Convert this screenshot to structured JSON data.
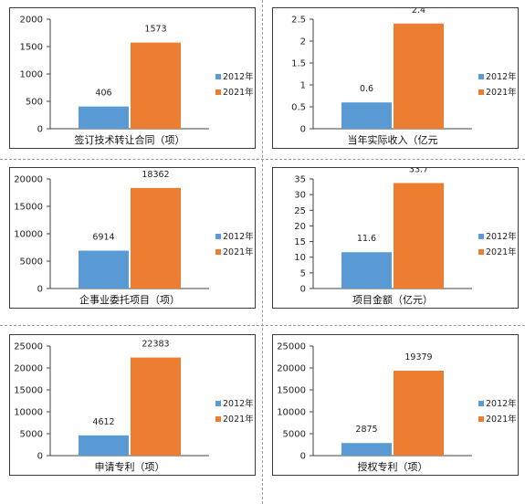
{
  "colors": {
    "series_2012": "#5b9bd5",
    "series_2021": "#ed7d31",
    "axis": "#404040"
  },
  "legend": [
    "2012年",
    "2021年"
  ],
  "chart_data": [
    {
      "type": "bar",
      "categories": [
        "签订技术转让合同（项）"
      ],
      "series": [
        {
          "name": "2012年",
          "values": [
            406
          ]
        },
        {
          "name": "2021年",
          "values": [
            1573
          ]
        }
      ],
      "data_labels": [
        "406",
        "1573"
      ],
      "yticks": [
        "0",
        "500",
        "1000",
        "1500",
        "2000"
      ],
      "ylim": [
        0,
        2000
      ],
      "xlabel": "签订技术转让合同（项）",
      "legend_position": "right"
    },
    {
      "type": "bar",
      "categories": [
        "当年实际收入（亿元"
      ],
      "series": [
        {
          "name": "2012年",
          "values": [
            0.6
          ]
        },
        {
          "name": "2021年",
          "values": [
            2.4
          ]
        }
      ],
      "data_labels": [
        "0.6",
        "2.4"
      ],
      "yticks": [
        "0",
        "0.5",
        "1",
        "1.5",
        "2",
        "2.5"
      ],
      "ylim": [
        0,
        2.5
      ],
      "xlabel": "当年实际收入（亿元",
      "legend_position": "right"
    },
    {
      "type": "bar",
      "categories": [
        "企事业委托项目（项）"
      ],
      "series": [
        {
          "name": "2012年",
          "values": [
            6914
          ]
        },
        {
          "name": "2021年",
          "values": [
            18362
          ]
        }
      ],
      "data_labels": [
        "6914",
        "18362"
      ],
      "yticks": [
        "0",
        "5000",
        "10000",
        "15000",
        "20000"
      ],
      "ylim": [
        0,
        20000
      ],
      "xlabel": "企事业委托项目（项）",
      "legend_position": "right"
    },
    {
      "type": "bar",
      "categories": [
        "项目金额（亿元）"
      ],
      "series": [
        {
          "name": "2012年",
          "values": [
            11.6
          ]
        },
        {
          "name": "2021年",
          "values": [
            33.7
          ]
        }
      ],
      "data_labels": [
        "11.6",
        "33.7"
      ],
      "yticks": [
        "0",
        "5",
        "10",
        "15",
        "20",
        "25",
        "30",
        "35"
      ],
      "ylim": [
        0,
        35
      ],
      "xlabel": "项目金额（亿元）",
      "legend_position": "right"
    },
    {
      "type": "bar",
      "categories": [
        "申请专利（项）"
      ],
      "series": [
        {
          "name": "2012年",
          "values": [
            4612
          ]
        },
        {
          "name": "2021年",
          "values": [
            22383
          ]
        }
      ],
      "data_labels": [
        "4612",
        "22383"
      ],
      "yticks": [
        "0",
        "5000",
        "10000",
        "15000",
        "20000",
        "25000"
      ],
      "ylim": [
        0,
        25000
      ],
      "xlabel": "申请专利（项）",
      "legend_position": "right"
    },
    {
      "type": "bar",
      "categories": [
        "授权专利（项）"
      ],
      "series": [
        {
          "name": "2012年",
          "values": [
            2875
          ]
        },
        {
          "name": "2021年",
          "values": [
            19379
          ]
        }
      ],
      "data_labels": [
        "2875",
        "19379"
      ],
      "yticks": [
        "0",
        "5000",
        "10000",
        "15000",
        "20000",
        "25000"
      ],
      "ylim": [
        0,
        25000
      ],
      "xlabel": "授权专利（项）",
      "legend_position": "right"
    }
  ]
}
